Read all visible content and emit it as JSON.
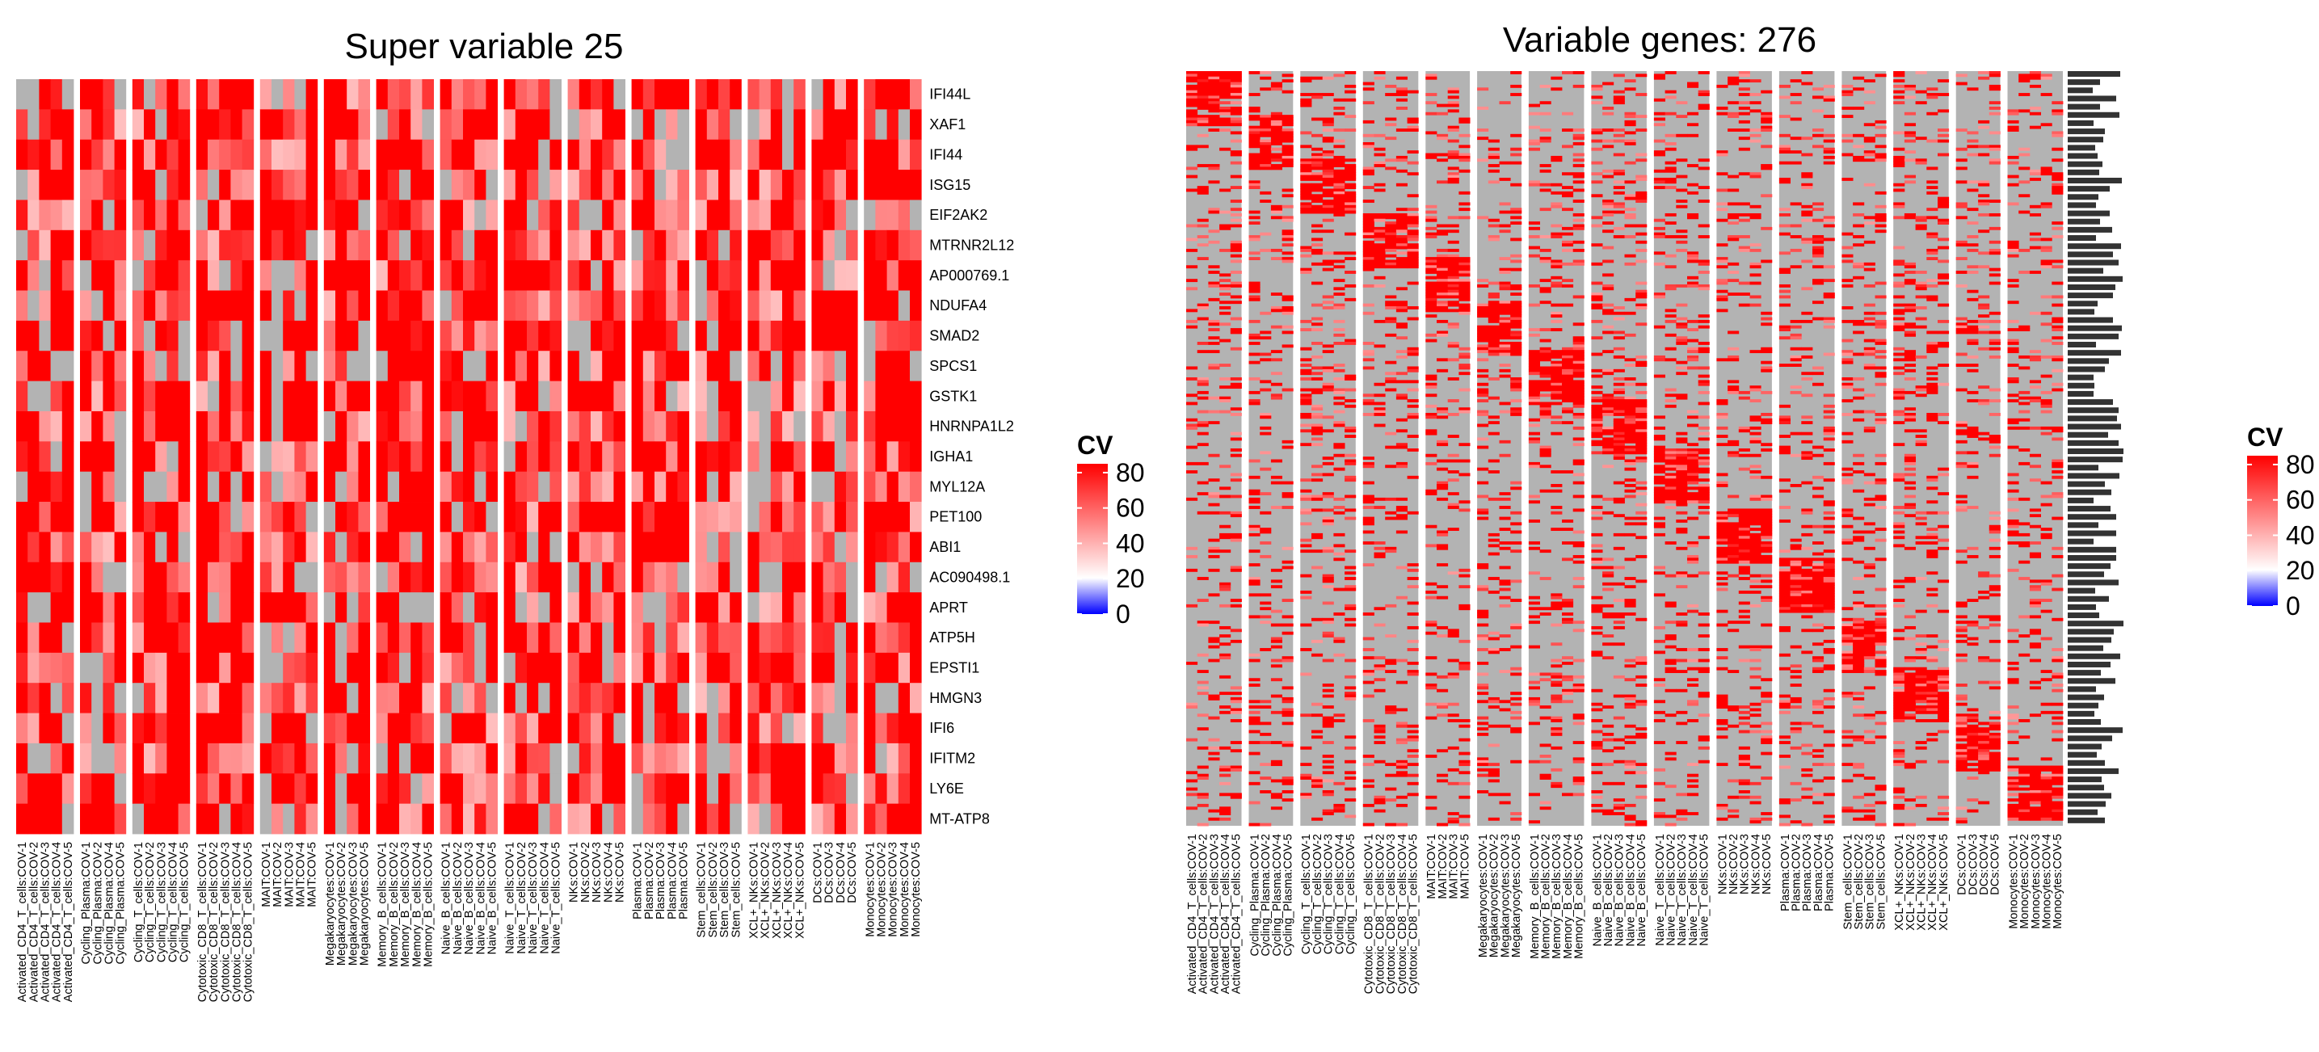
{
  "colors": {
    "high": "#ff0000",
    "mid": "#ffffff",
    "low": "#0000ff",
    "na": "#b3b3b3",
    "text": "#000000"
  },
  "chart_data": [
    {
      "type": "heatmap",
      "title": "Super variable 25",
      "legend": {
        "title": "CV",
        "ticks": [
          0,
          20,
          40,
          60,
          80
        ],
        "range": [
          0,
          85
        ],
        "placement": "right"
      },
      "column_groups": [
        "Activated_CD4_T_cells",
        "Cycling_Plasma",
        "Cycling_T_cells",
        "Cytotoxic_CD8_T_cells",
        "MAIT",
        "Megakaryocytes",
        "Memory_B_cells",
        "Naive_B_cells",
        "Naive_T_cells",
        "NKs",
        "Plasma",
        "Stem_cells",
        "XCL+_NKs",
        "DCs",
        "Monocytes"
      ],
      "columns": [
        "Activated_CD4_T_cells:COV-1",
        "Activated_CD4_T_cells:COV-2",
        "Activated_CD4_T_cells:COV-3",
        "Activated_CD4_T_cells:COV-4",
        "Activated_CD4_T_cells:COV-5",
        "Cycling_Plasma:COV-1",
        "Cycling_Plasma:COV-2",
        "Cycling_Plasma:COV-4",
        "Cycling_Plasma:COV-5",
        "Cycling_T_cells:COV-1",
        "Cycling_T_cells:COV-2",
        "Cycling_T_cells:COV-3",
        "Cycling_T_cells:COV-4",
        "Cycling_T_cells:COV-5",
        "Cytotoxic_CD8_T_cells:COV-1",
        "Cytotoxic_CD8_T_cells:COV-2",
        "Cytotoxic_CD8_T_cells:COV-3",
        "Cytotoxic_CD8_T_cells:COV-4",
        "Cytotoxic_CD8_T_cells:COV-5",
        "MAIT:COV-1",
        "MAIT:COV-2",
        "MAIT:COV-3",
        "MAIT:COV-4",
        "MAIT:COV-5",
        "Megakaryocytes:COV-1",
        "Megakaryocytes:COV-2",
        "Megakaryocytes:COV-3",
        "Megakaryocytes:COV-5",
        "Memory_B_cells:COV-1",
        "Memory_B_cells:COV-2",
        "Memory_B_cells:COV-3",
        "Memory_B_cells:COV-4",
        "Memory_B_cells:COV-5",
        "Naive_B_cells:COV-1",
        "Naive_B_cells:COV-2",
        "Naive_B_cells:COV-3",
        "Naive_B_cells:COV-4",
        "Naive_B_cells:COV-5",
        "Naive_T_cells:COV-1",
        "Naive_T_cells:COV-2",
        "Naive_T_cells:COV-3",
        "Naive_T_cells:COV-4",
        "Naive_T_cells:COV-5",
        "NKs:COV-1",
        "NKs:COV-2",
        "NKs:COV-3",
        "NKs:COV-4",
        "NKs:COV-5",
        "Plasma:COV-1",
        "Plasma:COV-2",
        "Plasma:COV-3",
        "Plasma:COV-4",
        "Plasma:COV-5",
        "Stem_cells:COV-1",
        "Stem_cells:COV-2",
        "Stem_cells:COV-3",
        "Stem_cells:COV-5",
        "XCL+_NKs:COV-1",
        "XCL+_NKs:COV-2",
        "XCL+_NKs:COV-3",
        "XCL+_NKs:COV-4",
        "XCL+_NKs:COV-5",
        "DCs:COV-1",
        "DCs:COV-3",
        "DCs:COV-4",
        "DCs:COV-5",
        "Monocytes:COV-1",
        "Monocytes:COV-2",
        "Monocytes:COV-3",
        "Monocytes:COV-4",
        "Monocytes:COV-5"
      ],
      "rows": [
        "IFI44L",
        "XAF1",
        "IFI44",
        "ISG15",
        "EIF2AK2",
        "MTRNR2L12",
        "AP000769.1",
        "NDUFA4",
        "SMAD2",
        "SPCS1",
        "GSTK1",
        "HNRNPA1L2",
        "IGHA1",
        "MYL12A",
        "PET100",
        "ABI1",
        "AC090498.1",
        "APRT",
        "ATP5H",
        "EPSTI1",
        "HMGN3",
        "IFI6",
        "IFITM2",
        "LY6E",
        "MT-ATP8"
      ]
    },
    {
      "type": "heatmap",
      "title": "Variable genes: 276",
      "n_rows": 276,
      "legend": {
        "title": "CV",
        "ticks": [
          0,
          20,
          40,
          60,
          80
        ],
        "range": [
          0,
          85
        ],
        "placement": "right"
      },
      "column_groups": [
        "Activated_CD4_T_cells",
        "Cycling_Plasma",
        "Cycling_T_cells",
        "Cytotoxic_CD8_T_cells",
        "MAIT",
        "Megakaryocytes",
        "Memory_B_cells",
        "Naive_B_cells",
        "Naive_T_cells",
        "NKs",
        "Plasma",
        "Stem_cells",
        "XCL+_NKs",
        "DCs",
        "Monocytes"
      ],
      "columns": [
        "Activated_CD4_T_cells:COV-1",
        "Activated_CD4_T_cells:COV-2",
        "Activated_CD4_T_cells:COV-3",
        "Activated_CD4_T_cells:COV-4",
        "Activated_CD4_T_cells:COV-5",
        "Cycling_Plasma:COV-1",
        "Cycling_Plasma:COV-2",
        "Cycling_Plasma:COV-4",
        "Cycling_Plasma:COV-5",
        "Cycling_T_cells:COV-1",
        "Cycling_T_cells:COV-2",
        "Cycling_T_cells:COV-3",
        "Cycling_T_cells:COV-4",
        "Cycling_T_cells:COV-5",
        "Cytotoxic_CD8_T_cells:COV-1",
        "Cytotoxic_CD8_T_cells:COV-2",
        "Cytotoxic_CD8_T_cells:COV-3",
        "Cytotoxic_CD8_T_cells:COV-4",
        "Cytotoxic_CD8_T_cells:COV-5",
        "MAIT:COV-1",
        "MAIT:COV-2",
        "MAIT:COV-3",
        "MAIT:COV-5",
        "Megakaryocytes:COV-1",
        "Megakaryocytes:COV-2",
        "Megakaryocytes:COV-3",
        "Megakaryocytes:COV-5",
        "Memory_B_cells:COV-1",
        "Memory_B_cells:COV-2",
        "Memory_B_cells:COV-3",
        "Memory_B_cells:COV-4",
        "Memory_B_cells:COV-5",
        "Naive_B_cells:COV-1",
        "Naive_B_cells:COV-2",
        "Naive_B_cells:COV-3",
        "Naive_B_cells:COV-4",
        "Naive_B_cells:COV-5",
        "Naive_T_cells:COV-1",
        "Naive_T_cells:COV-2",
        "Naive_T_cells:COV-3",
        "Naive_T_cells:COV-4",
        "Naive_T_cells:COV-5",
        "NKs:COV-1",
        "NKs:COV-2",
        "NKs:COV-3",
        "NKs:COV-4",
        "NKs:COV-5",
        "Plasma:COV-1",
        "Plasma:COV-2",
        "Plasma:COV-3",
        "Plasma:COV-4",
        "Plasma:COV-5",
        "Stem_cells:COV-1",
        "Stem_cells:COV-2",
        "Stem_cells:COV-3",
        "Stem_cells:COV-5",
        "XCL+_NKs:COV-1",
        "XCL+_NKs:COV-2",
        "XCL+_NKs:COV-3",
        "XCL+_NKs:COV-4",
        "XCL+_NKs:COV-5",
        "DCs:COV-1",
        "DCs:COV-3",
        "DCs:COV-4",
        "DCs:COV-5",
        "Monocytes:COV-1",
        "Monocytes:COV-2",
        "Monocytes:COV-3",
        "Monocytes:COV-4",
        "Monocytes:COV-5"
      ],
      "group_sizes": [
        5,
        4,
        5,
        5,
        4,
        4,
        5,
        5,
        5,
        5,
        5,
        4,
        5,
        4,
        5
      ]
    }
  ]
}
